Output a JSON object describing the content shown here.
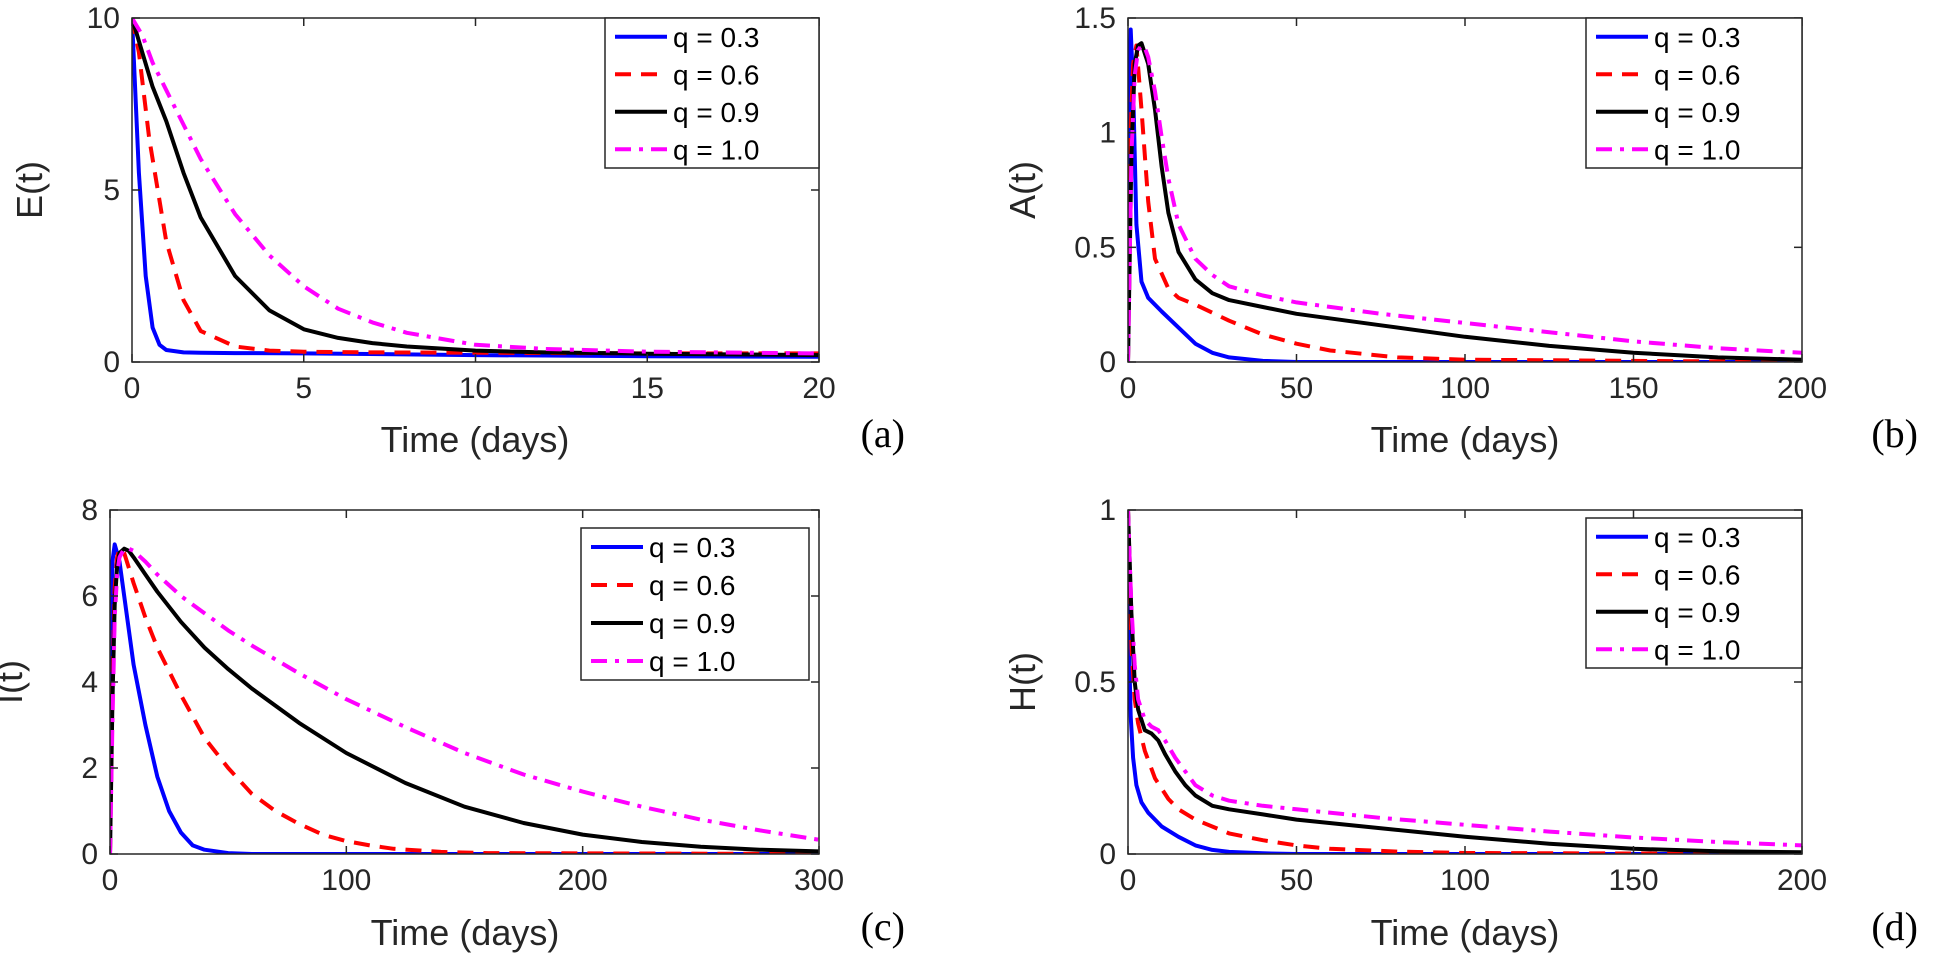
{
  "chart_data": [
    {
      "type": "line",
      "panel_label": "(a)",
      "xlabel": "Time (days)",
      "ylabel": "E(t)",
      "xlim": [
        0,
        20
      ],
      "ylim": [
        0,
        10
      ],
      "xticks": [
        0,
        5,
        10,
        15,
        20
      ],
      "yticks": [
        0,
        5,
        10
      ],
      "xtick_labels": [
        "0",
        "5",
        "10",
        "15",
        "20"
      ],
      "ytick_labels": [
        "0",
        "5",
        "10"
      ],
      "legend_position": "top-right",
      "series": [
        {
          "name": "q = 0.3",
          "style": "solid",
          "color": "#0000ff",
          "x": [
            0,
            0.2,
            0.4,
            0.6,
            0.8,
            1,
            1.5,
            2,
            3,
            5,
            10,
            15,
            20
          ],
          "y": [
            10,
            5.5,
            2.5,
            1.0,
            0.5,
            0.35,
            0.28,
            0.27,
            0.26,
            0.25,
            0.2,
            0.17,
            0.15
          ]
        },
        {
          "name": "q = 0.6",
          "style": "dashed",
          "color": "#ff0000",
          "x": [
            0,
            0.2,
            0.5,
            1,
            1.5,
            2,
            3,
            4,
            5,
            7,
            10,
            15,
            20
          ],
          "y": [
            10,
            9.0,
            6.5,
            3.5,
            1.8,
            0.9,
            0.45,
            0.33,
            0.3,
            0.28,
            0.27,
            0.25,
            0.25
          ]
        },
        {
          "name": "q = 0.9",
          "style": "solid",
          "color": "#000000",
          "x": [
            0,
            0.3,
            0.6,
            1,
            1.5,
            2,
            3,
            4,
            5,
            6,
            7,
            8,
            10,
            12,
            15,
            20
          ],
          "y": [
            10,
            9.0,
            8.0,
            7.0,
            5.5,
            4.2,
            2.5,
            1.5,
            0.95,
            0.7,
            0.55,
            0.45,
            0.33,
            0.28,
            0.24,
            0.2
          ]
        },
        {
          "name": "q = 1.0",
          "style": "dashdot",
          "color": "#ff00ff",
          "x": [
            0,
            0.3,
            0.6,
            1,
            1.5,
            2,
            3,
            4,
            5,
            6,
            7,
            8,
            10,
            12,
            15,
            20
          ],
          "y": [
            10,
            9.5,
            8.7,
            7.9,
            6.9,
            5.9,
            4.3,
            3.1,
            2.2,
            1.55,
            1.15,
            0.85,
            0.5,
            0.38,
            0.3,
            0.25
          ]
        }
      ]
    },
    {
      "type": "line",
      "panel_label": "(b)",
      "xlabel": "Time (days)",
      "ylabel": "A(t)",
      "xlim": [
        0,
        200
      ],
      "ylim": [
        0,
        1.5
      ],
      "xticks": [
        0,
        50,
        100,
        150,
        200
      ],
      "yticks": [
        0,
        0.5,
        1,
        1.5
      ],
      "xtick_labels": [
        "0",
        "50",
        "100",
        "150",
        "200"
      ],
      "ytick_labels": [
        "0",
        "0.5",
        "1",
        "1.5"
      ],
      "legend_position": "top-right",
      "series": [
        {
          "name": "q = 0.3",
          "style": "solid",
          "color": "#0000ff",
          "x": [
            0,
            0.3,
            0.8,
            1.5,
            2.5,
            4,
            6,
            10,
            15,
            20,
            25,
            30,
            40,
            50,
            100,
            200
          ],
          "y": [
            0,
            1.0,
            1.45,
            1.2,
            0.6,
            0.35,
            0.28,
            0.22,
            0.15,
            0.08,
            0.04,
            0.02,
            0.005,
            0.0,
            0.0,
            0.0
          ]
        },
        {
          "name": "q = 0.6",
          "style": "dashed",
          "color": "#ff0000",
          "x": [
            0,
            0.5,
            1.5,
            2.5,
            4,
            6,
            8,
            12,
            15,
            20,
            30,
            40,
            50,
            60,
            80,
            100,
            200
          ],
          "y": [
            0,
            0.9,
            1.3,
            1.38,
            1.1,
            0.7,
            0.45,
            0.32,
            0.28,
            0.25,
            0.18,
            0.12,
            0.08,
            0.05,
            0.02,
            0.01,
            0.0
          ]
        },
        {
          "name": "q = 0.9",
          "style": "solid",
          "color": "#000000",
          "x": [
            0,
            1,
            2,
            3,
            4,
            6,
            8,
            10,
            12,
            15,
            20,
            25,
            30,
            40,
            50,
            75,
            100,
            125,
            150,
            175,
            200
          ],
          "y": [
            0,
            0.9,
            1.3,
            1.38,
            1.39,
            1.3,
            1.1,
            0.85,
            0.65,
            0.48,
            0.36,
            0.3,
            0.27,
            0.24,
            0.21,
            0.16,
            0.11,
            0.07,
            0.04,
            0.02,
            0.01
          ]
        },
        {
          "name": "q = 1.0",
          "style": "dashdot",
          "color": "#ff00ff",
          "x": [
            0,
            1,
            2,
            3,
            4,
            5,
            6,
            8,
            10,
            12,
            15,
            20,
            25,
            30,
            40,
            50,
            75,
            100,
            125,
            150,
            175,
            200
          ],
          "y": [
            0,
            0.9,
            1.25,
            1.36,
            1.38,
            1.37,
            1.33,
            1.18,
            0.98,
            0.8,
            0.6,
            0.45,
            0.38,
            0.33,
            0.29,
            0.26,
            0.21,
            0.17,
            0.13,
            0.09,
            0.06,
            0.04
          ]
        }
      ]
    },
    {
      "type": "line",
      "panel_label": "(c)",
      "xlabel": "Time (days)",
      "ylabel": "I(t)",
      "xlim": [
        0,
        300
      ],
      "ylim": [
        0,
        8
      ],
      "xticks": [
        0,
        100,
        200,
        300
      ],
      "yticks": [
        0,
        2,
        4,
        6,
        8
      ],
      "xtick_labels": [
        "0",
        "100",
        "200",
        "300"
      ],
      "ytick_labels": [
        "0",
        "2",
        "4",
        "6",
        "8"
      ],
      "legend_position": "top-right",
      "series": [
        {
          "name": "q = 0.3",
          "style": "solid",
          "color": "#0000ff",
          "x": [
            0,
            0.5,
            1,
            2,
            4,
            6,
            8,
            10,
            15,
            20,
            25,
            30,
            35,
            40,
            50,
            60,
            300
          ],
          "y": [
            0,
            5.0,
            6.8,
            7.2,
            6.8,
            6.0,
            5.2,
            4.4,
            3.0,
            1.8,
            1.0,
            0.5,
            0.2,
            0.1,
            0.02,
            0.0,
            0.0
          ]
        },
        {
          "name": "q = 0.6",
          "style": "dashed",
          "color": "#ff0000",
          "x": [
            0,
            1,
            2,
            3,
            4,
            6,
            10,
            15,
            20,
            30,
            40,
            50,
            60,
            70,
            80,
            90,
            100,
            110,
            120,
            140,
            160,
            300
          ],
          "y": [
            0,
            4.0,
            6.2,
            6.9,
            7.1,
            7.0,
            6.3,
            5.5,
            4.8,
            3.7,
            2.7,
            2.0,
            1.4,
            1.0,
            0.7,
            0.45,
            0.3,
            0.2,
            0.12,
            0.05,
            0.02,
            0.0
          ]
        },
        {
          "name": "q = 0.9",
          "style": "solid",
          "color": "#000000",
          "x": [
            0,
            1,
            2,
            3,
            4,
            6,
            8,
            10,
            15,
            20,
            30,
            40,
            50,
            60,
            80,
            100,
            125,
            150,
            175,
            200,
            225,
            250,
            275,
            300
          ],
          "y": [
            0,
            3.5,
            5.8,
            6.7,
            7.0,
            7.1,
            7.05,
            6.9,
            6.5,
            6.1,
            5.4,
            4.8,
            4.3,
            3.85,
            3.05,
            2.35,
            1.65,
            1.1,
            0.72,
            0.45,
            0.28,
            0.17,
            0.1,
            0.06
          ]
        },
        {
          "name": "q = 1.0",
          "style": "dashdot",
          "color": "#ff00ff",
          "x": [
            0,
            1,
            2,
            3,
            4,
            6,
            8,
            10,
            15,
            20,
            30,
            40,
            50,
            60,
            80,
            100,
            125,
            150,
            175,
            200,
            225,
            250,
            275,
            300
          ],
          "y": [
            0,
            3.0,
            5.5,
            6.5,
            6.9,
            7.1,
            7.1,
            7.05,
            6.8,
            6.5,
            6.0,
            5.6,
            5.2,
            4.85,
            4.2,
            3.6,
            2.95,
            2.35,
            1.85,
            1.45,
            1.1,
            0.8,
            0.55,
            0.33
          ]
        }
      ]
    },
    {
      "type": "line",
      "panel_label": "(d)",
      "xlabel": "Time (days)",
      "ylabel": "H(t)",
      "xlim": [
        0,
        200
      ],
      "ylim": [
        0,
        1
      ],
      "xticks": [
        0,
        50,
        100,
        150,
        200
      ],
      "yticks": [
        0,
        0.5,
        1
      ],
      "xtick_labels": [
        "0",
        "50",
        "100",
        "150",
        "200"
      ],
      "ytick_labels": [
        "0",
        "0.5",
        "1"
      ],
      "legend_position": "top-right",
      "series": [
        {
          "name": "q = 0.3",
          "style": "solid",
          "color": "#0000ff",
          "x": [
            0,
            0.3,
            0.8,
            1.5,
            2.5,
            4,
            6,
            8,
            10,
            15,
            20,
            25,
            30,
            40,
            50,
            200
          ],
          "y": [
            1,
            0.6,
            0.4,
            0.28,
            0.2,
            0.15,
            0.12,
            0.1,
            0.08,
            0.05,
            0.025,
            0.012,
            0.006,
            0.002,
            0.0,
            0.0
          ]
        },
        {
          "name": "q = 0.6",
          "style": "dashed",
          "color": "#ff0000",
          "x": [
            0,
            0.5,
            1,
            2,
            3,
            5,
            8,
            12,
            15,
            20,
            30,
            40,
            50,
            60,
            80,
            100,
            200
          ],
          "y": [
            1,
            0.8,
            0.6,
            0.45,
            0.38,
            0.3,
            0.22,
            0.16,
            0.13,
            0.1,
            0.06,
            0.04,
            0.025,
            0.015,
            0.007,
            0.003,
            0.0
          ]
        },
        {
          "name": "q = 0.9",
          "style": "solid",
          "color": "#000000",
          "x": [
            0,
            0.5,
            1,
            2,
            3,
            5,
            7,
            9,
            11,
            14,
            17,
            20,
            25,
            30,
            40,
            50,
            75,
            100,
            125,
            150,
            175,
            200
          ],
          "y": [
            1,
            0.85,
            0.7,
            0.5,
            0.42,
            0.36,
            0.35,
            0.33,
            0.29,
            0.24,
            0.2,
            0.17,
            0.14,
            0.13,
            0.115,
            0.1,
            0.075,
            0.05,
            0.03,
            0.015,
            0.008,
            0.005
          ]
        },
        {
          "name": "q = 1.0",
          "style": "dashdot",
          "color": "#ff00ff",
          "x": [
            0,
            0.5,
            1,
            2,
            3,
            5,
            7,
            9,
            11,
            14,
            17,
            20,
            25,
            30,
            40,
            50,
            75,
            100,
            125,
            150,
            175,
            200
          ],
          "y": [
            1,
            0.85,
            0.72,
            0.55,
            0.45,
            0.39,
            0.37,
            0.36,
            0.33,
            0.28,
            0.24,
            0.2,
            0.17,
            0.155,
            0.14,
            0.13,
            0.105,
            0.085,
            0.065,
            0.048,
            0.035,
            0.025
          ]
        }
      ]
    }
  ]
}
